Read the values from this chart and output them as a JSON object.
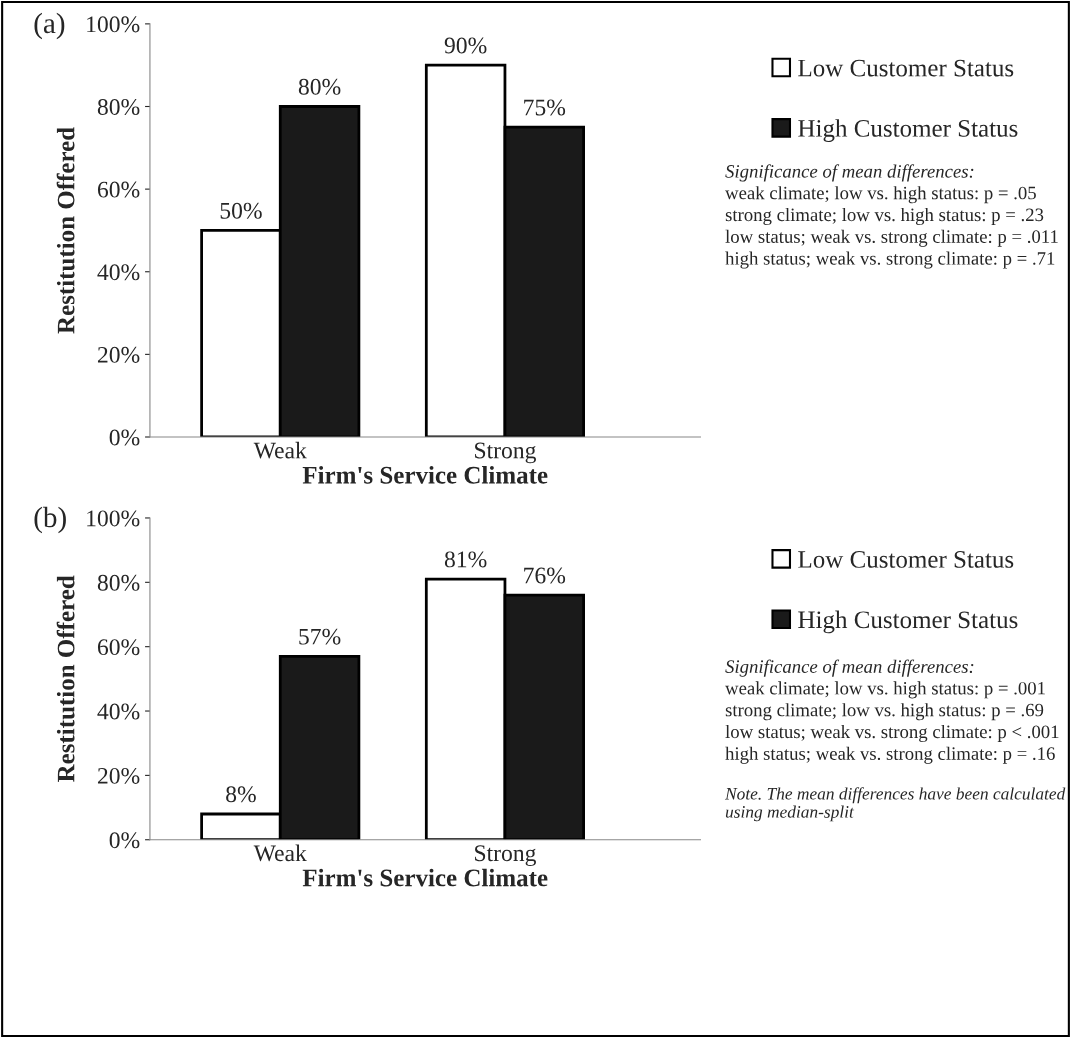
{
  "chart_data": [
    {
      "type": "bar",
      "title": "(a)",
      "xlabel": "Firm's Service Climate",
      "ylabel": "Restitution Offered",
      "categories": [
        "Weak",
        "Strong"
      ],
      "series": [
        {
          "name": "Low Customer Status",
          "color": "#ffffff",
          "values": [
            50,
            90
          ],
          "value_labels": [
            "50%",
            "90%"
          ]
        },
        {
          "name": "High Customer Status",
          "color": "#1a1a1a",
          "values": [
            80,
            75
          ],
          "value_labels": [
            "80%",
            "75%"
          ]
        }
      ],
      "ylim": [
        0,
        100
      ],
      "yticks": [
        {
          "value": 0,
          "label": "0%"
        },
        {
          "value": 20,
          "label": "20%"
        },
        {
          "value": 40,
          "label": "40%"
        },
        {
          "value": 60,
          "label": "60%"
        },
        {
          "value": 80,
          "label": "80%"
        },
        {
          "value": 100,
          "label": "100%"
        }
      ],
      "legend": "right",
      "grid": false,
      "annotations": [
        "Significance of mean differences:",
        "weak climate; low vs. high status: p = .05",
        "strong climate; low vs. high status: p = .23",
        "low status; weak vs. strong climate: p = .011",
        "high status; weak vs. strong climate: p = .71"
      ]
    },
    {
      "type": "bar",
      "title": "(b)",
      "xlabel": "Firm's Service Climate",
      "ylabel": "Restitution Offered",
      "categories": [
        "Weak",
        "Strong"
      ],
      "series": [
        {
          "name": "Low Customer Status",
          "color": "#ffffff",
          "values": [
            8,
            81
          ],
          "value_labels": [
            "8%",
            "81%"
          ]
        },
        {
          "name": "High Customer Status",
          "color": "#1a1a1a",
          "values": [
            57,
            76
          ],
          "value_labels": [
            "57%",
            "76%"
          ]
        }
      ],
      "ylim": [
        0,
        100
      ],
      "yticks": [
        {
          "value": 0,
          "label": "0%"
        },
        {
          "value": 20,
          "label": "20%"
        },
        {
          "value": 40,
          "label": "40%"
        },
        {
          "value": 60,
          "label": "60%"
        },
        {
          "value": 80,
          "label": "80%"
        },
        {
          "value": 100,
          "label": "100%"
        }
      ],
      "legend": "right",
      "grid": false,
      "annotations": [
        "Significance of mean differences:",
        "weak climate; low vs. high status: p = .001",
        "strong climate; low vs. high status: p = .69",
        "low status; weak vs. strong climate: p < .001",
        "high status; weak vs. strong climate: p = .16",
        "Note. The mean differences have been calculated using median-split"
      ]
    }
  ]
}
